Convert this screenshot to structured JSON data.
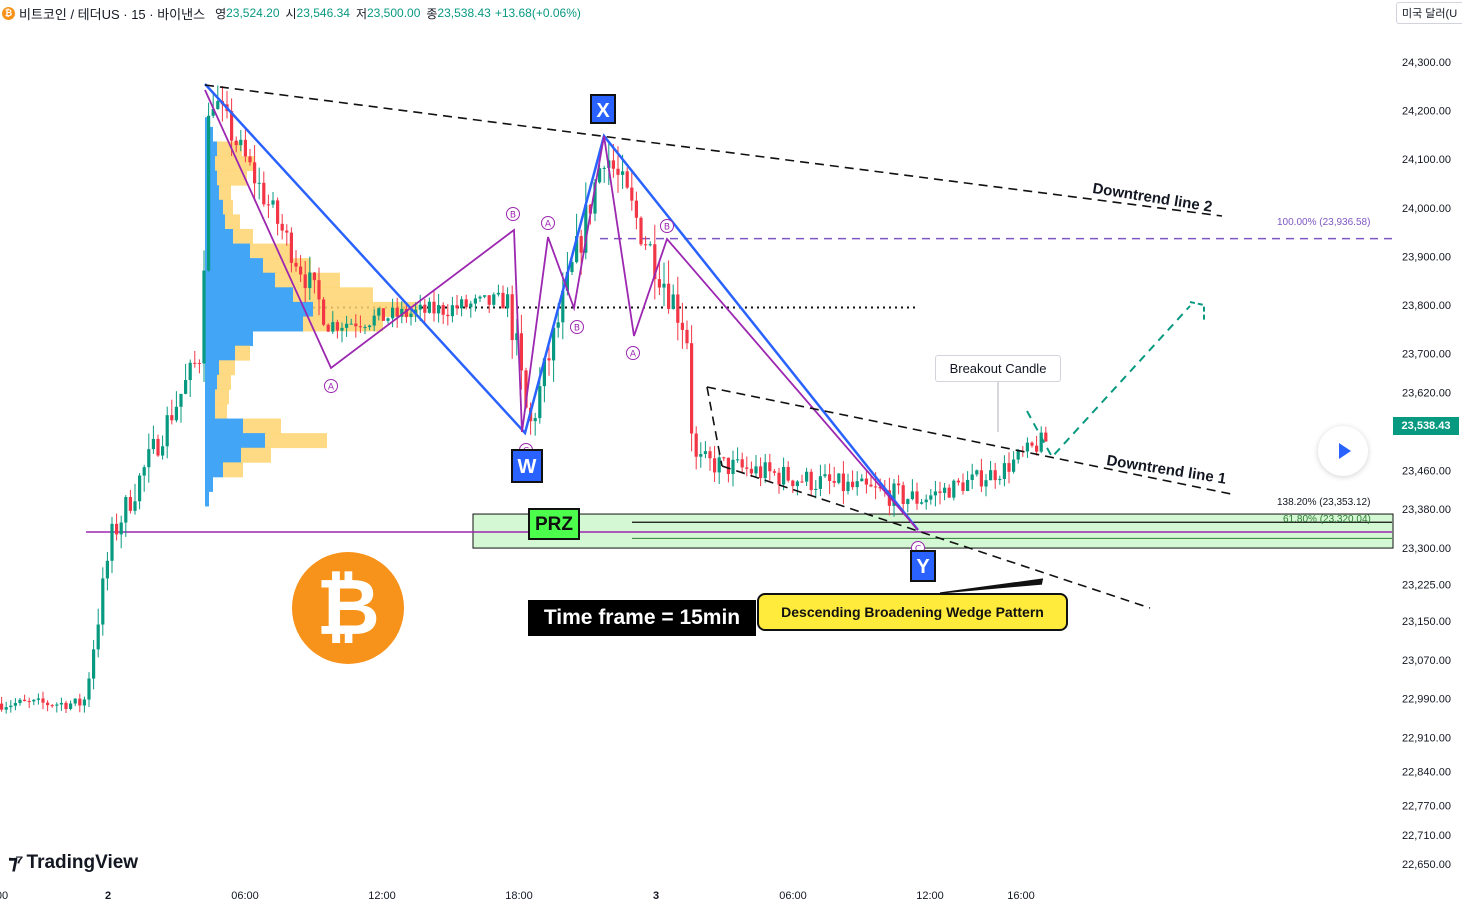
{
  "header": {
    "symbol": "비트코인 / 테더US · 15 · 바이낸스",
    "open_label": "영",
    "open": "23,524.20",
    "high_label": "시",
    "high": "23,546.34",
    "low_label": "저",
    "low": "23,500.00",
    "close_label": "종",
    "close": "23,538.43",
    "change": "+13.68(+0.06%)"
  },
  "currency_button": "미국 달러(U",
  "logo": {
    "text": "TradingView"
  },
  "last_price": "23,538.43",
  "colors": {
    "up": "#089981",
    "down": "#f23645",
    "harmonic_blue": "#2962ff",
    "harmonic_purple": "#9c27b0",
    "prz_fill": "#d4f7d4",
    "accent_yellow": "#ffeb3b"
  },
  "annotations": {
    "x_label": "X",
    "w_label": "W",
    "y_label": "Y",
    "prz_label": "PRZ",
    "time_frame": "Time frame = 15min",
    "wedge_pattern": "Descending Broadening Wedge Pattern",
    "breakout_candle": "Breakout Candle",
    "downtrend_line_1": "Downtrend line 1",
    "downtrend_line_2": "Downtrend line 2",
    "fib_100": "100.00% (23,936.58)",
    "fib_138": "138.20% (23,353.12)",
    "fib_618": "61.80% (23,320.04)",
    "wave_labels": [
      "Ⓑ",
      "Ⓐ",
      "Ⓒ",
      "Ⓐ",
      "Ⓑ",
      "Ⓐ",
      "Ⓑ",
      "Ⓒ"
    ]
  },
  "chart_data": {
    "type": "candlestick",
    "title": "",
    "xlabel": "",
    "ylabel": "",
    "x_ticks": [
      "00",
      "2",
      "06:00",
      "12:00",
      "18:00",
      "3",
      "06:00",
      "12:00",
      "16:00"
    ],
    "y_ticks": [
      24300,
      24200,
      24100,
      24000,
      23900,
      23800,
      23700,
      23620,
      23538.43,
      23460,
      23380,
      23300,
      23225,
      23150,
      23070,
      22990,
      22910,
      22840,
      22770,
      22710,
      22650
    ],
    "y_tick_labels": [
      "24,300.00",
      "24,200.00",
      "24,100.00",
      "24,000.00",
      "23,900.00",
      "23,800.00",
      "23,700.00",
      "23,620.00",
      "23,538.43",
      "23,460.00",
      "23,380.00",
      "23,300.00",
      "23,225.00",
      "23,150.00",
      "23,070.00",
      "22,990.00",
      "22,910.00",
      "22,840.00",
      "22,770.00",
      "22,710.00",
      "22,650.00"
    ],
    "ylim": [
      22630,
      24330
    ],
    "key_levels": {
      "fib_100": 23936.58,
      "fib_138": 23353.12,
      "fib_618": 23320.04,
      "poc": 23795
    },
    "harmonic_points_blue": [
      {
        "label": "start",
        "t": 0.15,
        "price": 24255
      },
      {
        "label": "W",
        "t": 0.375,
        "price": 23515
      },
      {
        "label": "X",
        "t": 0.44,
        "price": 24145
      },
      {
        "label": "Y",
        "t": 0.67,
        "price": 23330
      }
    ],
    "harmonic_points_purple": [
      {
        "t": 0.15,
        "price": 24255
      },
      {
        "t": 0.24,
        "price": 23665
      },
      {
        "t": 0.375,
        "price": 23940
      },
      {
        "t": 0.38,
        "price": 23515
      },
      {
        "t": 0.4,
        "price": 23930
      },
      {
        "t": 0.42,
        "price": 23780
      },
      {
        "t": 0.44,
        "price": 24145
      },
      {
        "t": 0.46,
        "price": 23740
      },
      {
        "t": 0.485,
        "price": 23925
      },
      {
        "t": 0.67,
        "price": 23330
      }
    ],
    "projection": [
      {
        "t": 0.765,
        "price": 23465
      },
      {
        "t": 0.875,
        "price": 23790
      }
    ],
    "candles_seed": {
      "segments": [
        {
          "t0": 0.0,
          "t1": 0.06,
          "p0": 22980,
          "p1": 22980,
          "vol": 25
        },
        {
          "t0": 0.06,
          "t1": 0.08,
          "p0": 22980,
          "p1": 23320,
          "vol": 60
        },
        {
          "t0": 0.08,
          "t1": 0.145,
          "p0": 23320,
          "p1": 23700,
          "vol": 60
        },
        {
          "t0": 0.145,
          "t1": 0.152,
          "p0": 23700,
          "p1": 24240,
          "vol": 90
        },
        {
          "t0": 0.152,
          "t1": 0.24,
          "p0": 24240,
          "p1": 23760,
          "vol": 60
        },
        {
          "t0": 0.24,
          "t1": 0.37,
          "p0": 23760,
          "p1": 23810,
          "vol": 40
        },
        {
          "t0": 0.37,
          "t1": 0.385,
          "p0": 23810,
          "p1": 23540,
          "vol": 90
        },
        {
          "t0": 0.385,
          "t1": 0.44,
          "p0": 23540,
          "p1": 24120,
          "vol": 80
        },
        {
          "t0": 0.44,
          "t1": 0.5,
          "p0": 24120,
          "p1": 23750,
          "vol": 80
        },
        {
          "t0": 0.5,
          "t1": 0.505,
          "p0": 23750,
          "p1": 23480,
          "vol": 70
        },
        {
          "t0": 0.505,
          "t1": 0.67,
          "p0": 23480,
          "p1": 23400,
          "vol": 50
        },
        {
          "t0": 0.67,
          "t1": 0.73,
          "p0": 23400,
          "p1": 23460,
          "vol": 40
        },
        {
          "t0": 0.73,
          "t1": 0.76,
          "p0": 23460,
          "p1": 23520,
          "vol": 40
        }
      ]
    }
  }
}
